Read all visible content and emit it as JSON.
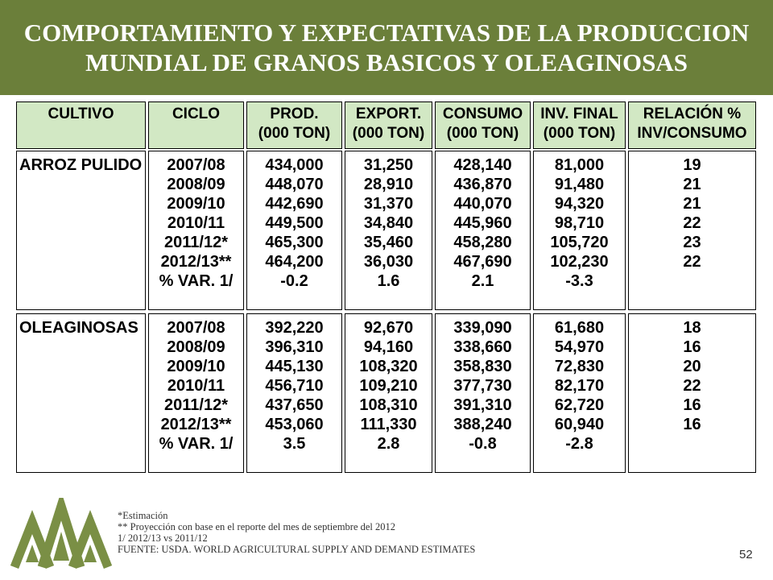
{
  "header": {
    "title_line1": "COMPORTAMIENTO Y EXPECTATIVAS DE LA PRODUCCION",
    "title_line2": "MUNDIAL DE GRANOS BASICOS Y OLEAGINOSAS"
  },
  "table": {
    "columns": [
      {
        "line1": "CULTIVO",
        "line2": ""
      },
      {
        "line1": "CICLO",
        "line2": ""
      },
      {
        "line1": "PROD.",
        "line2": "(000 TON)"
      },
      {
        "line1": "EXPORT.",
        "line2": "(000 TON)"
      },
      {
        "line1": "CONSUMO",
        "line2": "(000 TON)"
      },
      {
        "line1": "INV. FINAL",
        "line2": "(000 TON)"
      },
      {
        "line1": "RELACIÓN %",
        "line2": "INV/CONSUMO"
      }
    ],
    "groups": [
      {
        "crop": "ARROZ PULIDO",
        "ciclo": [
          "2007/08",
          "2008/09",
          "2009/10",
          "2010/11",
          "2011/12*",
          "2012/13**",
          "% VAR. 1/"
        ],
        "prod": [
          "434,000",
          "448,070",
          "442,690",
          "449,500",
          "465,300",
          "464,200",
          "-0.2"
        ],
        "export": [
          "31,250",
          "28,910",
          "31,370",
          "34,840",
          "35,460",
          "36,030",
          "1.6"
        ],
        "consumo": [
          "428,140",
          "436,870",
          "440,070",
          "445,960",
          "458,280",
          "467,690",
          "2.1"
        ],
        "inv": [
          "81,000",
          "91,480",
          "94,320",
          "98,710",
          "105,720",
          "102,230",
          "-3.3"
        ],
        "rel": [
          "19",
          "21",
          "21",
          "22",
          "23",
          "22",
          ""
        ]
      },
      {
        "crop": "OLEAGINOSAS",
        "ciclo": [
          "2007/08",
          "2008/09",
          "2009/10",
          "2010/11",
          "2011/12*",
          "2012/13**",
          "% VAR. 1/"
        ],
        "prod": [
          "392,220",
          "396,310",
          "445,130",
          "456,710",
          "437,650",
          "453,060",
          "3.5"
        ],
        "export": [
          "92,670",
          "94,160",
          "108,320",
          "109,210",
          "108,310",
          "111,330",
          "2.8"
        ],
        "consumo": [
          "339,090",
          "338,660",
          "358,830",
          "377,730",
          "391,310",
          "388,240",
          "-0.8"
        ],
        "inv": [
          "61,680",
          "54,970",
          "72,830",
          "82,170",
          "62,720",
          "60,940",
          "-2.8"
        ],
        "rel": [
          "18",
          "16",
          "20",
          "22",
          "16",
          "16",
          ""
        ]
      }
    ]
  },
  "notes": [
    "*Estimación",
    "** Proyección con base en el reporte  del mes de septiembre del 2012",
    "1/ 2012/13 vs 2011/12",
    "FUENTE: USDA. WORLD AGRICULTURAL SUPPLY AND DEMAND ESTIMATES"
  ],
  "page_number": "52",
  "colors": {
    "header_bg": "#6b7f3a",
    "table_header_bg": "#d2e8c4",
    "logo_green": "#7a8f45"
  },
  "logo_icon": "triple-peak-logo-icon"
}
